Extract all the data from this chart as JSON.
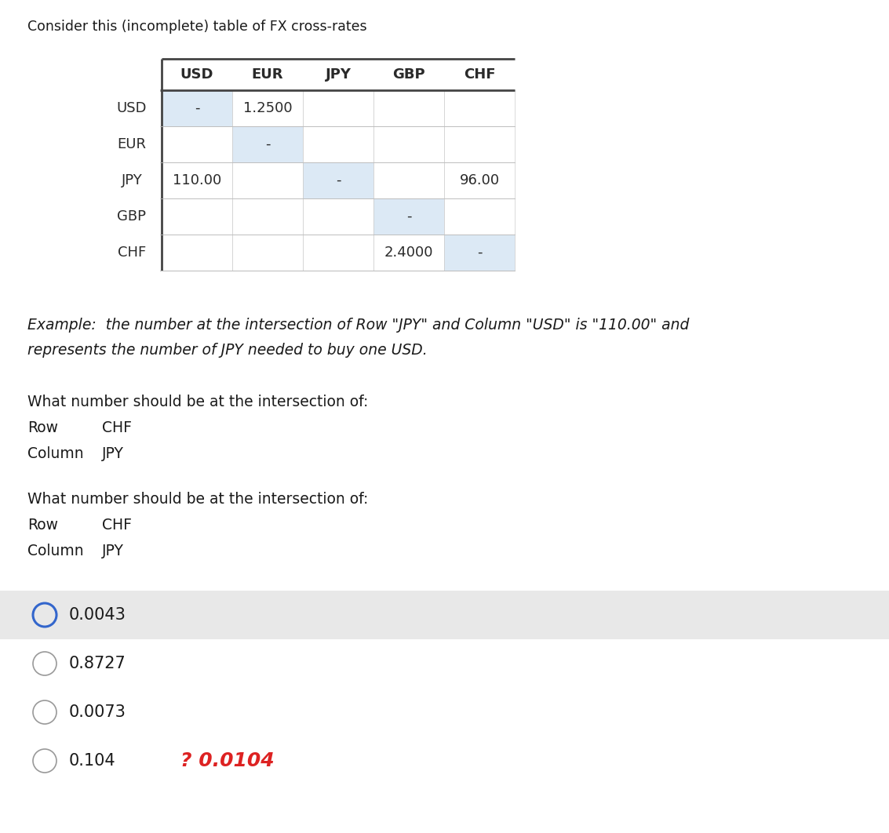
{
  "title": "Consider this (incomplete) table of FX cross-rates",
  "title_fontsize": 12.5,
  "columns": [
    "USD",
    "EUR",
    "JPY",
    "GBP",
    "CHF"
  ],
  "rows": [
    "USD",
    "EUR",
    "JPY",
    "GBP",
    "CHF"
  ],
  "table_data": [
    [
      "-",
      "1.2500",
      "",
      "",
      ""
    ],
    [
      "",
      "-",
      "",
      "",
      ""
    ],
    [
      "110.00",
      "",
      "-",
      "",
      "96.00"
    ],
    [
      "",
      "",
      "",
      "-",
      ""
    ],
    [
      "",
      "",
      "",
      "2.4000",
      "-"
    ]
  ],
  "example_text_line1": "Example:  the number at the intersection of Row \"JPY\" and Column \"USD\" is \"110.00\" and",
  "example_text_line2": "represents the number of JPY needed to buy one USD.",
  "question_text": "What number should be at the intersection of:",
  "row_label": "Row",
  "row_value": "CHF",
  "col_label": "Column",
  "col_value": "JPY",
  "question2_text": "What number should be at the intersection of:",
  "row2_label": "Row",
  "row2_value": "CHF",
  "col2_label": "Column",
  "col2_value": "JPY",
  "options": [
    "0.0043",
    "0.8727",
    "0.0073",
    "0.104"
  ],
  "selected_option": 0,
  "selected_bg": "#e8e8e8",
  "selected_circle_color": "#3366cc",
  "unselected_circle_color": "#999999",
  "handwritten_text": "? 0.0104",
  "handwritten_color": "#dd2222",
  "cell_bg_light_blue": "#dce9f5",
  "cell_bg_white": "#ffffff",
  "table_text_color": "#2a2a2a",
  "body_text_color": "#1a1a1a",
  "option_fontsize": 15,
  "body_fontsize": 13.5,
  "table_fontsize": 13
}
